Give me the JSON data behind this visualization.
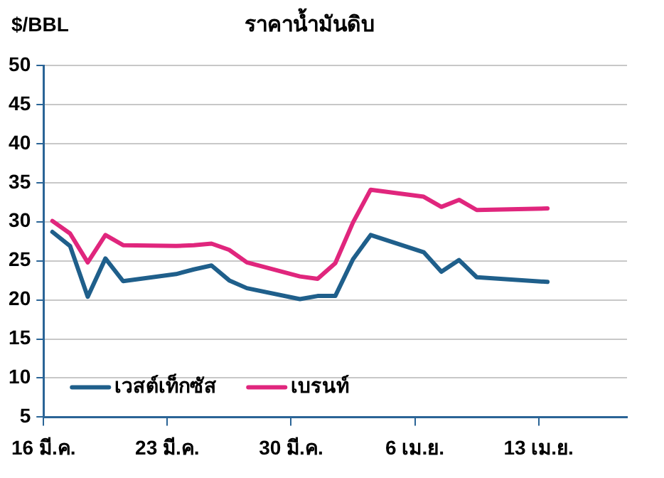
{
  "chart_data": {
    "type": "line",
    "title": "ราคาน้ำมันดิบ",
    "ylabel": "$/BBL",
    "x": [
      "--03-16T12:00",
      "--03-17T12:00",
      "--03-18T12:00",
      "--03-19T12:00",
      "--03-20T12:00",
      "--03-23T12:00",
      "--03-24T12:00",
      "--03-25T12:00",
      "--03-26T12:00",
      "--03-27T12:00",
      "--03-30T12:00",
      "--03-31T12:00",
      "--04-01T12:00",
      "--04-02T12:00",
      "--04-03T12:00",
      "--04-06T12:00",
      "--04-07T12:00",
      "--04-08T12:00",
      "--04-09T12:00",
      "--04-13T12:00"
    ],
    "series": [
      {
        "name": "เวสต์เท็กซัส",
        "color": "#1f5f8b",
        "values": [
          28.7,
          26.9,
          20.4,
          25.3,
          22.4,
          23.3,
          23.9,
          24.4,
          22.5,
          21.5,
          20.1,
          20.5,
          20.5,
          25.2,
          28.3,
          26.1,
          23.6,
          25.1,
          22.9,
          22.3
        ]
      },
      {
        "name": "เบรนท์",
        "color": "#e0267d",
        "values": [
          30.1,
          28.5,
          24.8,
          28.3,
          27.0,
          26.9,
          27.0,
          27.2,
          26.4,
          24.8,
          23.0,
          22.7,
          24.7,
          29.9,
          34.1,
          33.2,
          31.9,
          32.8,
          31.5,
          31.7
        ]
      }
    ],
    "xlim": [
      "--03-16",
      "--04-18"
    ],
    "xticks": [
      {
        "value": "--03-16",
        "label": "16 มี.ค."
      },
      {
        "value": "--03-23",
        "label": "23 มี.ค."
      },
      {
        "value": "--03-30",
        "label": "30 มี.ค."
      },
      {
        "value": "--04-06",
        "label": "6 เม.ย."
      },
      {
        "value": "--04-13",
        "label": "13 เม.ย."
      }
    ],
    "ylim": [
      5,
      50
    ],
    "yticks": [
      5,
      10,
      15,
      20,
      25,
      30,
      35,
      40,
      45,
      50
    ],
    "grid": "y",
    "legend": "bottom left",
    "marker": "none",
    "line_style": "solid"
  }
}
